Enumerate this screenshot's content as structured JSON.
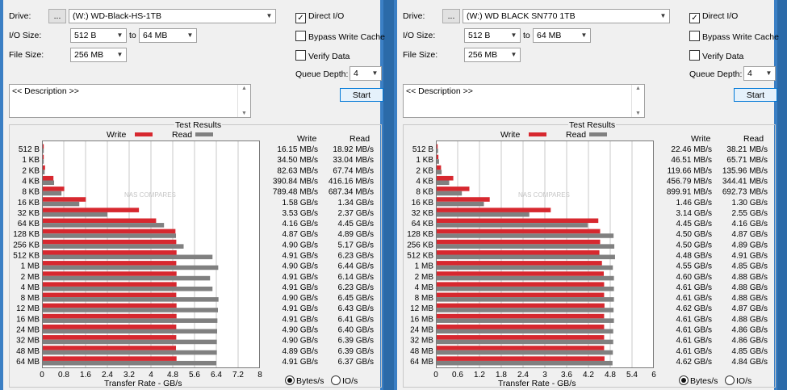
{
  "labels": {
    "drive": "Drive:",
    "io_size": "I/O Size:",
    "file_size": "File Size:",
    "to": "to",
    "browse": "...",
    "direct_io": "Direct I/O",
    "bypass_write_cache": "Bypass Write Cache",
    "verify_data": "Verify Data",
    "queue_depth": "Queue Depth:",
    "description": "<< Description >>",
    "start": "Start",
    "test_results": "Test Results",
    "write": "Write",
    "read": "Read",
    "x_axis_title": "Transfer Rate - GB/s",
    "bytes_per_s": "Bytes/s",
    "io_per_s": "IO/s",
    "watermark": "NAS COMPARES"
  },
  "colors": {
    "write": "#d7282f",
    "read": "#808080"
  },
  "panels": [
    {
      "drive": "(W:) WD-Black-HS-1TB",
      "io_min": "512 B",
      "io_max": "64 MB",
      "file_size": "256 MB",
      "queue_depth": "4",
      "direct_io": true,
      "bypass_write_cache": false,
      "verify_data": false,
      "units": "bytes",
      "chart_data": {
        "type": "bar",
        "categories": [
          "512 B",
          "1 KB",
          "2 KB",
          "4 KB",
          "8 KB",
          "16 KB",
          "32 KB",
          "64 KB",
          "128 KB",
          "256 KB",
          "512 KB",
          "1 MB",
          "2 MB",
          "4 MB",
          "8 MB",
          "12 MB",
          "16 MB",
          "24 MB",
          "32 MB",
          "48 MB",
          "64 MB"
        ],
        "x_ticks": [
          "0",
          "0.8",
          "1.6",
          "2.4",
          "3.2",
          "4",
          "4.8",
          "5.6",
          "6.4",
          "7.2",
          "8"
        ],
        "xlim": [
          0,
          8
        ],
        "series": [
          {
            "name": "Write",
            "values": [
              0.016,
              0.035,
              0.083,
              0.391,
              0.789,
              1.58,
              3.53,
              4.16,
              4.87,
              4.9,
              4.91,
              4.9,
              4.91,
              4.91,
              4.9,
              4.91,
              4.91,
              4.9,
              4.9,
              4.89,
              4.91
            ]
          },
          {
            "name": "Read",
            "values": [
              0.019,
              0.033,
              0.068,
              0.416,
              0.687,
              1.34,
              2.37,
              4.45,
              4.89,
              5.17,
              6.23,
              6.44,
              6.14,
              6.23,
              6.45,
              6.43,
              6.41,
              6.4,
              6.39,
              6.39,
              6.37
            ]
          }
        ],
        "write_text": [
          "16.15 MB/s",
          "34.50 MB/s",
          "82.63 MB/s",
          "390.84 MB/s",
          "789.48 MB/s",
          "1.58 GB/s",
          "3.53 GB/s",
          "4.16 GB/s",
          "4.87 GB/s",
          "4.90 GB/s",
          "4.91 GB/s",
          "4.90 GB/s",
          "4.91 GB/s",
          "4.91 GB/s",
          "4.90 GB/s",
          "4.91 GB/s",
          "4.91 GB/s",
          "4.90 GB/s",
          "4.90 GB/s",
          "4.89 GB/s",
          "4.91 GB/s"
        ],
        "read_text": [
          "18.92 MB/s",
          "33.04 MB/s",
          "67.74 MB/s",
          "416.16 MB/s",
          "687.34 MB/s",
          "1.34 GB/s",
          "2.37 GB/s",
          "4.45 GB/s",
          "4.89 GB/s",
          "5.17 GB/s",
          "6.23 GB/s",
          "6.44 GB/s",
          "6.14 GB/s",
          "6.23 GB/s",
          "6.45 GB/s",
          "6.43 GB/s",
          "6.41 GB/s",
          "6.40 GB/s",
          "6.39 GB/s",
          "6.39 GB/s",
          "6.37 GB/s"
        ]
      }
    },
    {
      "drive": "(W:) WD BLACK SN770 1TB",
      "io_min": "512 B",
      "io_max": "64 MB",
      "file_size": "256 MB",
      "queue_depth": "4",
      "direct_io": true,
      "bypass_write_cache": false,
      "verify_data": false,
      "units": "bytes",
      "chart_data": {
        "type": "bar",
        "categories": [
          "512 B",
          "1 KB",
          "2 KB",
          "4 KB",
          "8 KB",
          "16 KB",
          "32 KB",
          "64 KB",
          "128 KB",
          "256 KB",
          "512 KB",
          "1 MB",
          "2 MB",
          "4 MB",
          "8 MB",
          "12 MB",
          "16 MB",
          "24 MB",
          "32 MB",
          "48 MB",
          "64 MB"
        ],
        "x_ticks": [
          "0",
          "0.6",
          "1.2",
          "1.8",
          "2.4",
          "3",
          "3.6",
          "4.2",
          "4.8",
          "5.4",
          "6"
        ],
        "xlim": [
          0,
          6
        ],
        "series": [
          {
            "name": "Write",
            "values": [
              0.022,
              0.047,
              0.12,
              0.457,
              0.9,
              1.46,
              3.14,
              4.45,
              4.5,
              4.5,
              4.48,
              4.55,
              4.6,
              4.61,
              4.61,
              4.62,
              4.61,
              4.61,
              4.61,
              4.61,
              4.62
            ]
          },
          {
            "name": "Read",
            "values": [
              0.038,
              0.066,
              0.136,
              0.344,
              0.693,
              1.3,
              2.55,
              4.16,
              4.87,
              4.89,
              4.91,
              4.85,
              4.88,
              4.88,
              4.88,
              4.87,
              4.88,
              4.86,
              4.86,
              4.85,
              4.84
            ]
          }
        ],
        "write_text": [
          "22.46 MB/s",
          "46.51 MB/s",
          "119.66 MB/s",
          "456.79 MB/s",
          "899.91 MB/s",
          "1.46 GB/s",
          "3.14 GB/s",
          "4.45 GB/s",
          "4.50 GB/s",
          "4.50 GB/s",
          "4.48 GB/s",
          "4.55 GB/s",
          "4.60 GB/s",
          "4.61 GB/s",
          "4.61 GB/s",
          "4.62 GB/s",
          "4.61 GB/s",
          "4.61 GB/s",
          "4.61 GB/s",
          "4.61 GB/s",
          "4.62 GB/s"
        ],
        "read_text": [
          "38.21 MB/s",
          "65.71 MB/s",
          "135.96 MB/s",
          "344.41 MB/s",
          "692.73 MB/s",
          "1.30 GB/s",
          "2.55 GB/s",
          "4.16 GB/s",
          "4.87 GB/s",
          "4.89 GB/s",
          "4.91 GB/s",
          "4.85 GB/s",
          "4.88 GB/s",
          "4.88 GB/s",
          "4.88 GB/s",
          "4.87 GB/s",
          "4.88 GB/s",
          "4.86 GB/s",
          "4.86 GB/s",
          "4.85 GB/s",
          "4.84 GB/s"
        ]
      }
    }
  ]
}
